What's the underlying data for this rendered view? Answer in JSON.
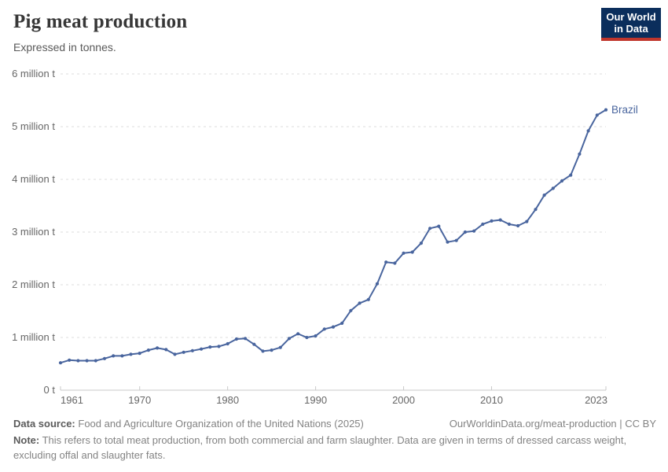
{
  "header": {
    "title": "Pig meat production",
    "subtitle": "Expressed in tonnes.",
    "logo": {
      "line1": "Our World",
      "line2": "in Data",
      "bg_color": "#0b2e5c",
      "bar_color": "#c0362c"
    }
  },
  "chart_data": {
    "type": "line",
    "title": "Pig meat production",
    "subtitle": "Expressed in tonnes.",
    "entity": "Brazil",
    "y_unit": "million tonnes",
    "xlim": [
      1961,
      2023
    ],
    "ylim": [
      0,
      6
    ],
    "grid": "horizontal-dashed",
    "legend_position": "end-of-line-label",
    "xticks": [
      1961,
      1970,
      1980,
      1990,
      2000,
      2010,
      2023
    ],
    "yticks": [
      0,
      1,
      2,
      3,
      4,
      5,
      6
    ],
    "ytick_labels": [
      "0 t",
      "1 million t",
      "2 million t",
      "3 million t",
      "4 million t",
      "5 million t",
      "6 million t"
    ],
    "x": [
      1961,
      1962,
      1963,
      1964,
      1965,
      1966,
      1967,
      1968,
      1969,
      1970,
      1971,
      1972,
      1973,
      1974,
      1975,
      1976,
      1977,
      1978,
      1979,
      1980,
      1981,
      1982,
      1983,
      1984,
      1985,
      1986,
      1987,
      1988,
      1989,
      1990,
      1991,
      1992,
      1993,
      1994,
      1995,
      1996,
      1997,
      1998,
      1999,
      2000,
      2001,
      2002,
      2003,
      2004,
      2005,
      2006,
      2007,
      2008,
      2009,
      2010,
      2011,
      2012,
      2013,
      2014,
      2015,
      2016,
      2017,
      2018,
      2019,
      2020,
      2021,
      2022,
      2023
    ],
    "series": [
      {
        "name": "Brazil",
        "color": "#49659E",
        "values": [
          0.52,
          0.57,
          0.56,
          0.56,
          0.56,
          0.6,
          0.65,
          0.65,
          0.68,
          0.7,
          0.76,
          0.8,
          0.77,
          0.68,
          0.72,
          0.75,
          0.78,
          0.82,
          0.83,
          0.88,
          0.97,
          0.98,
          0.87,
          0.74,
          0.76,
          0.81,
          0.98,
          1.07,
          1.0,
          1.03,
          1.16,
          1.2,
          1.27,
          1.51,
          1.65,
          1.72,
          2.02,
          2.43,
          2.41,
          2.6,
          2.62,
          2.79,
          3.07,
          3.11,
          2.81,
          2.84,
          3.0,
          3.02,
          3.15,
          3.21,
          3.23,
          3.15,
          3.12,
          3.2,
          3.43,
          3.7,
          3.83,
          3.97,
          4.08,
          4.48,
          4.92,
          5.22,
          5.32
        ]
      }
    ],
    "colors": {
      "grid": "#dcdcdc",
      "axis": "#c9c9c9",
      "tick_text": "#666666"
    }
  },
  "footer": {
    "source_label": "Data source:",
    "source_text": "Food and Agriculture Organization of the United Nations (2025)",
    "link": "OurWorldinData.org/meat-production | CC BY",
    "note_label": "Note:",
    "note_text": "This refers to total meat production, from both commercial and farm slaughter. Data are given in terms of dressed carcass weight, excluding offal and slaughter fats."
  }
}
